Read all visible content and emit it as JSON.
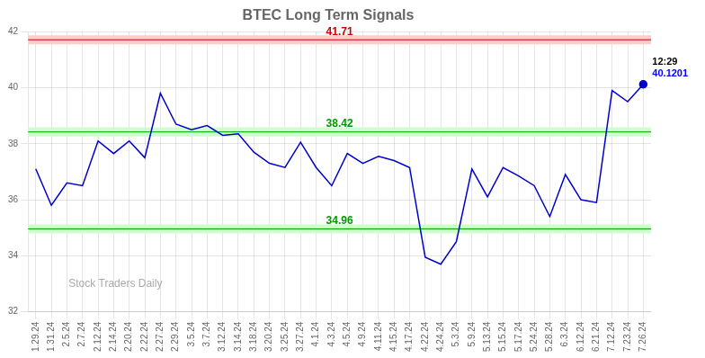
{
  "chart_data": {
    "type": "line",
    "title": "BTEC Long Term Signals",
    "categories": [
      "1.29.24",
      "1.31.24",
      "2.5.24",
      "2.7.24",
      "2.12.24",
      "2.14.24",
      "2.20.24",
      "2.22.24",
      "2.27.24",
      "2.29.24",
      "3.5.24",
      "3.7.24",
      "3.12.24",
      "3.14.24",
      "3.18.24",
      "3.20.24",
      "3.25.24",
      "3.27.24",
      "4.1.24",
      "4.3.24",
      "4.5.24",
      "4.9.24",
      "4.11.24",
      "4.15.24",
      "4.17.24",
      "4.22.24",
      "4.24.24",
      "5.3.24",
      "5.9.24",
      "5.13.24",
      "5.15.24",
      "5.17.24",
      "5.24.24",
      "5.28.24",
      "6.3.24",
      "6.12.24",
      "6.21.24",
      "7.12.24",
      "7.23.24",
      "7.26.24"
    ],
    "values": [
      37.1,
      35.8,
      36.6,
      36.5,
      38.1,
      37.65,
      38.1,
      37.5,
      39.8,
      38.7,
      38.5,
      38.65,
      38.3,
      38.35,
      37.7,
      37.3,
      37.15,
      38.05,
      37.15,
      36.5,
      37.65,
      37.3,
      37.55,
      37.4,
      37.15,
      33.95,
      33.7,
      34.5,
      37.1,
      36.1,
      37.15,
      36.85,
      36.5,
      35.4,
      36.9,
      36.0,
      35.9,
      39.9,
      39.5,
      40.1201
    ],
    "color": "#0000cc",
    "ylim": [
      32,
      42
    ],
    "yticks": [
      32,
      34,
      36,
      38,
      40,
      42
    ],
    "grid": true,
    "hlines": [
      {
        "value": 41.71,
        "label": "41.71",
        "color": "#cc0000",
        "fill": "#ffcccc"
      },
      {
        "value": 38.42,
        "label": "38.42",
        "color": "#009900",
        "fill": "#ccffcc"
      },
      {
        "value": 34.96,
        "label": "34.96",
        "color": "#009900",
        "fill": "#ccffcc"
      }
    ],
    "annotations": [
      {
        "text": "12:29",
        "color": "#000000"
      },
      {
        "text": "40.1201",
        "color": "#0000ff"
      }
    ],
    "watermark": "Stock Traders Daily"
  }
}
